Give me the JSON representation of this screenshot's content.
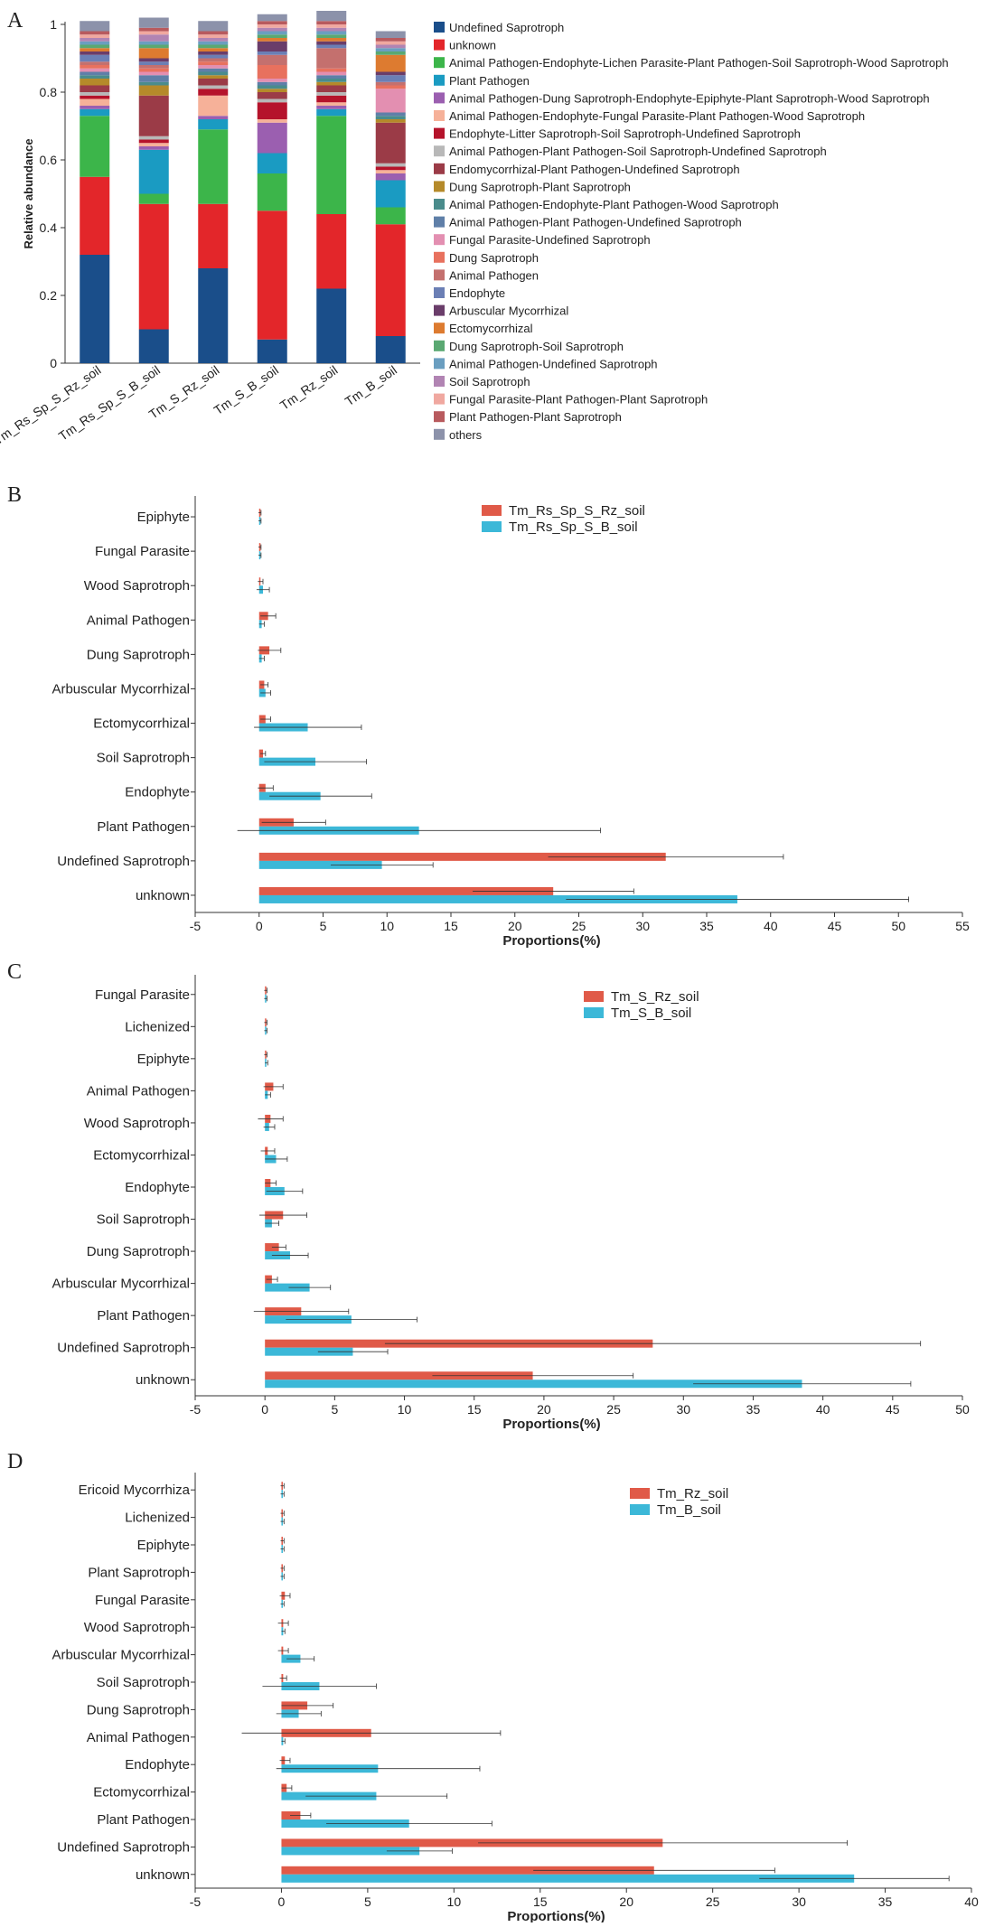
{
  "chart_data": [
    {
      "panel": "A",
      "type": "bar",
      "stacked": true,
      "ylabel": "Relative abundance",
      "ylim": [
        0,
        1
      ],
      "yticks": [
        "0",
        "0.2",
        "0.4",
        "0.6",
        "0.8",
        "1"
      ],
      "categories": [
        "Tm_Rs_Sp_S_Rz_soil",
        "Tm_Rs_Sp_S_B_soil",
        "Tm_S_Rz_soil",
        "Tm_S_B_soil",
        "Tm_Rz_soil",
        "Tm_B_soil"
      ],
      "legend_position": "right",
      "series": [
        {
          "name": "Undefined Saprotroph",
          "color": "#1a4e8a",
          "values": [
            0.32,
            0.1,
            0.28,
            0.07,
            0.22,
            0.08
          ]
        },
        {
          "name": "unknown",
          "color": "#e3262a",
          "values": [
            0.23,
            0.37,
            0.19,
            0.38,
            0.22,
            0.33
          ]
        },
        {
          "name": "Animal Pathogen-Endophyte-Lichen Parasite-Plant Pathogen-Soil Saprotroph-Wood Saprotroph",
          "color": "#3cb54a",
          "values": [
            0.18,
            0.03,
            0.22,
            0.11,
            0.29,
            0.05
          ]
        },
        {
          "name": "Plant Pathogen",
          "color": "#1a9bc2",
          "values": [
            0.02,
            0.13,
            0.03,
            0.06,
            0.02,
            0.08
          ]
        },
        {
          "name": "Animal Pathogen-Dung Saprotroph-Endophyte-Epiphyte-Plant Saprotroph-Wood Saprotroph",
          "color": "#9b5fb0",
          "values": [
            0.01,
            0.01,
            0.01,
            0.09,
            0.01,
            0.02
          ]
        },
        {
          "name": "Animal Pathogen-Endophyte-Fungal Parasite-Plant Pathogen-Wood Saprotroph",
          "color": "#f6b199",
          "values": [
            0.02,
            0.01,
            0.06,
            0.01,
            0.01,
            0.01
          ]
        },
        {
          "name": "Endophyte-Litter Saprotroph-Soil Saprotroph-Undefined Saprotroph",
          "color": "#b5132b",
          "values": [
            0.01,
            0.01,
            0.02,
            0.05,
            0.02,
            0.01
          ]
        },
        {
          "name": "Animal Pathogen-Plant Pathogen-Soil Saprotroph-Undefined Saprotroph",
          "color": "#b8b8b8",
          "values": [
            0.01,
            0.01,
            0.01,
            0.01,
            0.01,
            0.01
          ]
        },
        {
          "name": "Endomycorrhizal-Plant Pathogen-Undefined Saprotroph",
          "color": "#9b3b47",
          "values": [
            0.02,
            0.12,
            0.02,
            0.02,
            0.02,
            0.12
          ]
        },
        {
          "name": "Dung Saprotroph-Plant Saprotroph",
          "color": "#b58a2a",
          "values": [
            0.02,
            0.03,
            0.01,
            0.01,
            0.01,
            0.01
          ]
        },
        {
          "name": "Animal Pathogen-Endophyte-Plant Pathogen-Wood Saprotroph",
          "color": "#4a8c8c",
          "values": [
            0.01,
            0.01,
            0.01,
            0.01,
            0.01,
            0.01
          ]
        },
        {
          "name": "Animal Pathogen-Plant Pathogen-Undefined Saprotroph",
          "color": "#5f7fa8",
          "values": [
            0.01,
            0.02,
            0.01,
            0.01,
            0.01,
            0.01
          ]
        },
        {
          "name": "Fungal Parasite-Undefined Saprotroph",
          "color": "#e38fb1",
          "values": [
            0.01,
            0.01,
            0.01,
            0.01,
            0.01,
            0.07
          ]
        },
        {
          "name": "Dung Saprotroph",
          "color": "#e8715e",
          "values": [
            0.01,
            0.01,
            0.01,
            0.04,
            0.01,
            0.01
          ]
        },
        {
          "name": "Animal Pathogen",
          "color": "#c4706e",
          "values": [
            0.01,
            0.01,
            0.01,
            0.03,
            0.06,
            0.01
          ]
        },
        {
          "name": "Endophyte",
          "color": "#6b7fb5",
          "values": [
            0.02,
            0.01,
            0.01,
            0.01,
            0.01,
            0.02
          ]
        },
        {
          "name": "Arbuscular Mycorrhizal",
          "color": "#6a3d6a",
          "values": [
            0.01,
            0.01,
            0.01,
            0.03,
            0.01,
            0.01
          ]
        },
        {
          "name": "Ectomycorrhizal",
          "color": "#dd7b30",
          "values": [
            0.01,
            0.03,
            0.01,
            0.01,
            0.01,
            0.05
          ]
        },
        {
          "name": "Dung Saprotroph-Soil Saprotroph",
          "color": "#5aa872",
          "values": [
            0.01,
            0.01,
            0.01,
            0.01,
            0.01,
            0.01
          ]
        },
        {
          "name": "Animal Pathogen-Undefined Saprotroph",
          "color": "#6a9ec0",
          "values": [
            0.01,
            0.01,
            0.01,
            0.01,
            0.01,
            0.01
          ]
        },
        {
          "name": "Soil Saprotroph",
          "color": "#b184b3",
          "values": [
            0.01,
            0.02,
            0.01,
            0.01,
            0.01,
            0.01
          ]
        },
        {
          "name": "Fungal Parasite-Plant Pathogen-Plant Saprotroph",
          "color": "#f0a8a0",
          "values": [
            0.01,
            0.01,
            0.01,
            0.01,
            0.01,
            0.01
          ]
        },
        {
          "name": "Plant Pathogen-Plant Saprotroph",
          "color": "#b85a5e",
          "values": [
            0.01,
            0.01,
            0.01,
            0.01,
            0.01,
            0.01
          ]
        },
        {
          "name": "others",
          "color": "#8c92aa",
          "values": [
            0.03,
            0.03,
            0.03,
            0.02,
            0.03,
            0.02
          ]
        }
      ]
    },
    {
      "panel": "B",
      "type": "bar",
      "orientation": "horizontal",
      "xlabel": "Proportions(%)",
      "xlim": [
        -5,
        55
      ],
      "xticks": [
        "-5",
        "0",
        "5",
        "10",
        "15",
        "20",
        "25",
        "30",
        "35",
        "40",
        "45",
        "50",
        "55"
      ],
      "categories": [
        "Epiphyte",
        "Fungal Parasite",
        "Wood Saprotroph",
        "Animal Pathogen",
        "Dung Saprotroph",
        "Arbuscular Mycorrhizal",
        "Ectomycorrhizal",
        "Soil Saprotroph",
        "Endophyte",
        "Plant Pathogen",
        "Undefined Saprotroph",
        "unknown"
      ],
      "legend_position": "top-right",
      "series": [
        {
          "name": "Tm_Rs_Sp_S_Rz_soil",
          "color": "#e05a48",
          "values": [
            0.05,
            0.05,
            0.1,
            0.7,
            0.8,
            0.4,
            0.5,
            0.3,
            0.5,
            2.7,
            31.8,
            23.0
          ],
          "errors": [
            0.1,
            0.1,
            0.2,
            0.6,
            0.9,
            0.3,
            0.4,
            0.2,
            0.6,
            2.5,
            9.2,
            6.3
          ]
        },
        {
          "name": "Tm_Rs_Sp_S_B_soil",
          "color": "#3cb8d8",
          "values": [
            0.05,
            0.05,
            0.3,
            0.2,
            0.2,
            0.5,
            3.8,
            4.4,
            4.8,
            12.5,
            9.6,
            37.4
          ],
          "errors": [
            0.1,
            0.1,
            0.5,
            0.2,
            0.2,
            0.4,
            4.2,
            4.0,
            4.0,
            14.2,
            4.0,
            13.4
          ]
        }
      ]
    },
    {
      "panel": "C",
      "type": "bar",
      "orientation": "horizontal",
      "xlabel": "Proportions(%)",
      "xlim": [
        -5,
        50
      ],
      "xticks": [
        "-5",
        "0",
        "5",
        "10",
        "15",
        "20",
        "25",
        "30",
        "35",
        "40",
        "45",
        "50"
      ],
      "categories": [
        "Fungal Parasite",
        "Lichenized",
        "Epiphyte",
        "Animal Pathogen",
        "Wood Saprotroph",
        "Ectomycorrhizal",
        "Endophyte",
        "Soil Saprotroph",
        "Dung Saprotroph",
        "Arbuscular Mycorrhizal",
        "Plant Pathogen",
        "Undefined Saprotroph",
        "unknown"
      ],
      "legend_position": "top-right",
      "series": [
        {
          "name": "Tm_S_Rz_soil",
          "color": "#e05a48",
          "values": [
            0.05,
            0.05,
            0.05,
            0.6,
            0.4,
            0.2,
            0.4,
            1.3,
            1.0,
            0.5,
            2.6,
            27.8,
            19.2
          ],
          "errors": [
            0.1,
            0.1,
            0.1,
            0.7,
            0.9,
            0.5,
            0.4,
            1.7,
            0.5,
            0.4,
            3.4,
            19.2,
            7.2
          ]
        },
        {
          "name": "Tm_S_B_soil",
          "color": "#3cb8d8",
          "values": [
            0.05,
            0.05,
            0.1,
            0.2,
            0.3,
            0.8,
            1.4,
            0.5,
            1.8,
            3.2,
            6.2,
            6.3,
            38.5
          ],
          "errors": [
            0.1,
            0.1,
            0.1,
            0.2,
            0.4,
            0.8,
            1.3,
            0.5,
            1.3,
            1.5,
            4.7,
            2.5,
            7.8
          ]
        }
      ]
    },
    {
      "panel": "D",
      "type": "bar",
      "orientation": "horizontal",
      "xlabel": "Proportions(%)",
      "xlim": [
        -5,
        40
      ],
      "xticks": [
        "-5",
        "0",
        "5",
        "10",
        "15",
        "20",
        "25",
        "30",
        "35",
        "40"
      ],
      "categories": [
        "Ericoid Mycorrhiza",
        "Lichenized",
        "Epiphyte",
        "Plant Saprotroph",
        "Fungal Parasite",
        "Wood Saprotroph",
        "Arbuscular Mycorrhizal",
        "Soil Saprotroph",
        "Dung Saprotroph",
        "Animal Pathogen",
        "Endophyte",
        "Ectomycorrhizal",
        "Plant Pathogen",
        "Undefined Saprotroph",
        "unknown"
      ],
      "legend_position": "top-right",
      "series": [
        {
          "name": "Tm_Rz_soil",
          "color": "#e05a48",
          "values": [
            0.05,
            0.05,
            0.05,
            0.05,
            0.2,
            0.1,
            0.1,
            0.1,
            1.5,
            5.2,
            0.2,
            0.3,
            1.1,
            22.1,
            21.6
          ],
          "errors": [
            0.1,
            0.1,
            0.1,
            0.1,
            0.3,
            0.3,
            0.3,
            0.2,
            1.5,
            7.5,
            0.3,
            0.3,
            0.6,
            10.7,
            7.0
          ]
        },
        {
          "name": "Tm_B_soil",
          "color": "#3cb8d8",
          "values": [
            0.05,
            0.05,
            0.05,
            0.05,
            0.05,
            0.1,
            1.1,
            2.2,
            1.0,
            0.1,
            5.6,
            5.5,
            7.4,
            8.0,
            33.2
          ],
          "errors": [
            0.1,
            0.1,
            0.1,
            0.1,
            0.1,
            0.1,
            0.8,
            3.3,
            1.3,
            0.1,
            5.9,
            4.1,
            4.8,
            1.9,
            5.5
          ]
        }
      ]
    }
  ]
}
